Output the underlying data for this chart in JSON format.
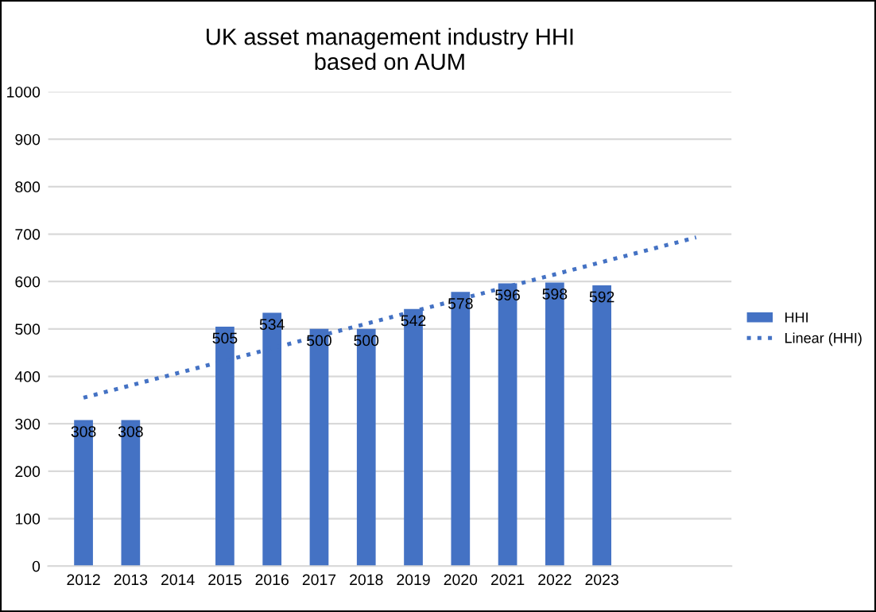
{
  "chart_data": {
    "type": "bar",
    "title": "UK asset management industry HHI\nbased on AUM",
    "categories": [
      "2012",
      "2013",
      "2014",
      "2015",
      "2016",
      "2017",
      "2018",
      "2019",
      "2020",
      "2021",
      "2022",
      "2023",
      null,
      null
    ],
    "series": [
      {
        "name": "HHI",
        "color": "#4472c4",
        "values": [
          308,
          308,
          null,
          505,
          534,
          500,
          500,
          542,
          578,
          596,
          598,
          592,
          null,
          null
        ],
        "value_labels": [
          "308",
          "308",
          null,
          "505",
          "534",
          "500",
          "500",
          "542",
          "578",
          "596",
          "598",
          "592",
          null,
          null
        ]
      },
      {
        "name": "Linear (HHI)",
        "type": "line",
        "line_style": "dotted",
        "color": "#4472c4",
        "values": [
          355,
          381,
          407,
          433,
          459,
          485,
          511,
          537,
          563,
          589,
          615,
          641,
          667,
          693
        ]
      }
    ],
    "ylim": [
      0,
      1000
    ],
    "yticks": [
      0,
      100,
      200,
      300,
      400,
      500,
      600,
      700,
      800,
      900,
      1000
    ],
    "grid": "y",
    "legend": "right"
  }
}
